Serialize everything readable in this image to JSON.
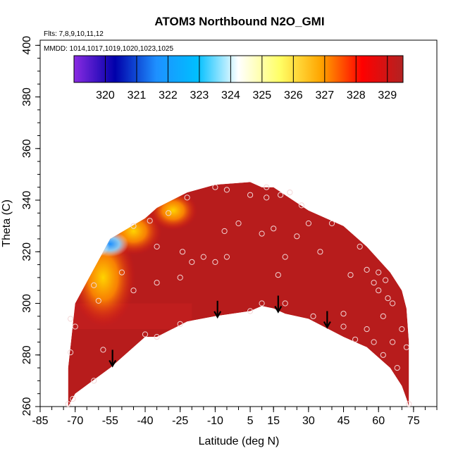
{
  "chart_data": {
    "type": "heatmap",
    "title": "ATOM3 Northbound N2O_GMI",
    "notes": [
      "Flts: 7,8,9,10,11,12",
      "MMDD: 1014,1017,1019,1020,1023,1025"
    ],
    "xlabel": "Latitude (deg N)",
    "ylabel": "Theta (C)",
    "xlim": [
      -85,
      85
    ],
    "ylim": [
      260,
      402
    ],
    "x_ticks": [
      -85,
      -70,
      -55,
      -40,
      -25,
      -10,
      5,
      15,
      30,
      45,
      60,
      75
    ],
    "y_ticks": [
      260,
      280,
      300,
      320,
      340,
      360,
      380,
      400
    ],
    "colorbar": {
      "range": [
        319.0,
        329.5
      ],
      "ticks": [
        320,
        321,
        322,
        323,
        324,
        325,
        326,
        327,
        328,
        329
      ],
      "colors": [
        "#8a2be2",
        "#0000aa",
        "#1e90ff",
        "#00bfff",
        "#ffffff",
        "#ffff66",
        "#ffa500",
        "#ff0000",
        "#b22222"
      ]
    },
    "surface": {
      "lat": [
        -73,
        -70,
        -55,
        -40,
        -35,
        -22,
        -10,
        5,
        10,
        15,
        20,
        30,
        45,
        55,
        65,
        70,
        72,
        73
      ],
      "bottom": [
        260,
        265,
        275,
        287,
        287,
        293,
        295,
        297,
        299,
        298,
        296,
        294,
        287,
        283,
        275,
        268,
        263,
        260
      ],
      "top": [
        275,
        300,
        325,
        333,
        337,
        343,
        346,
        347,
        345,
        345,
        342,
        336,
        330,
        322,
        312,
        305,
        298,
        285
      ]
    },
    "high_values": [
      {
        "lat": -58,
        "theta": 310,
        "value": 326.5
      },
      {
        "lat": -45,
        "theta": 328,
        "value": 326.5
      },
      {
        "lat": -28,
        "theta": 336,
        "value": 327
      }
    ],
    "low_values": [
      {
        "lat": -55,
        "theta": 323,
        "value": 323
      },
      {
        "lat": -62,
        "theta": 322,
        "value": 324.5
      }
    ],
    "arrows": [
      {
        "lat": -54,
        "theta": 282
      },
      {
        "lat": -9,
        "theta": 301
      },
      {
        "lat": 17,
        "theta": 303
      },
      {
        "lat": 38,
        "theta": 297
      }
    ],
    "points": [
      [
        -73,
        261
      ],
      [
        -71,
        263
      ],
      [
        -62,
        270
      ],
      [
        -72,
        281
      ],
      [
        -58,
        282
      ],
      [
        -70,
        291
      ],
      [
        -72,
        294
      ],
      [
        -60,
        301
      ],
      [
        -62,
        307
      ],
      [
        -50,
        312
      ],
      [
        -45,
        305
      ],
      [
        -40,
        288
      ],
      [
        -35,
        287
      ],
      [
        -25,
        292
      ],
      [
        -25,
        310
      ],
      [
        -35,
        308
      ],
      [
        -24,
        320
      ],
      [
        -35,
        322
      ],
      [
        -20,
        316
      ],
      [
        -45,
        330
      ],
      [
        -38,
        332
      ],
      [
        -30,
        335
      ],
      [
        -22,
        341
      ],
      [
        -10,
        345
      ],
      [
        -5,
        344
      ],
      [
        -10,
        316
      ],
      [
        -5,
        318
      ],
      [
        -6,
        328
      ],
      [
        0,
        331
      ],
      [
        5,
        297
      ],
      [
        10,
        300
      ],
      [
        10,
        327
      ],
      [
        15,
        329
      ],
      [
        17,
        311
      ],
      [
        20,
        318
      ],
      [
        25,
        326
      ],
      [
        30,
        331
      ],
      [
        35,
        320
      ],
      [
        20,
        300
      ],
      [
        32,
        295
      ],
      [
        45,
        291
      ],
      [
        45,
        296
      ],
      [
        48,
        311
      ],
      [
        52,
        322
      ],
      [
        55,
        313
      ],
      [
        58,
        308
      ],
      [
        60,
        305
      ],
      [
        64,
        302
      ],
      [
        66,
        300
      ],
      [
        62,
        295
      ],
      [
        55,
        290
      ],
      [
        50,
        286
      ],
      [
        58,
        285
      ],
      [
        62,
        280
      ],
      [
        66,
        285
      ],
      [
        70,
        290
      ],
      [
        68,
        275
      ],
      [
        72,
        283
      ],
      [
        73,
        261
      ],
      [
        12,
        341
      ],
      [
        18,
        342
      ],
      [
        22,
        343
      ],
      [
        12,
        345
      ],
      [
        27,
        338
      ],
      [
        40,
        331
      ],
      [
        60,
        312
      ],
      [
        63,
        309
      ],
      [
        -15,
        318
      ],
      [
        5,
        342
      ]
    ]
  }
}
